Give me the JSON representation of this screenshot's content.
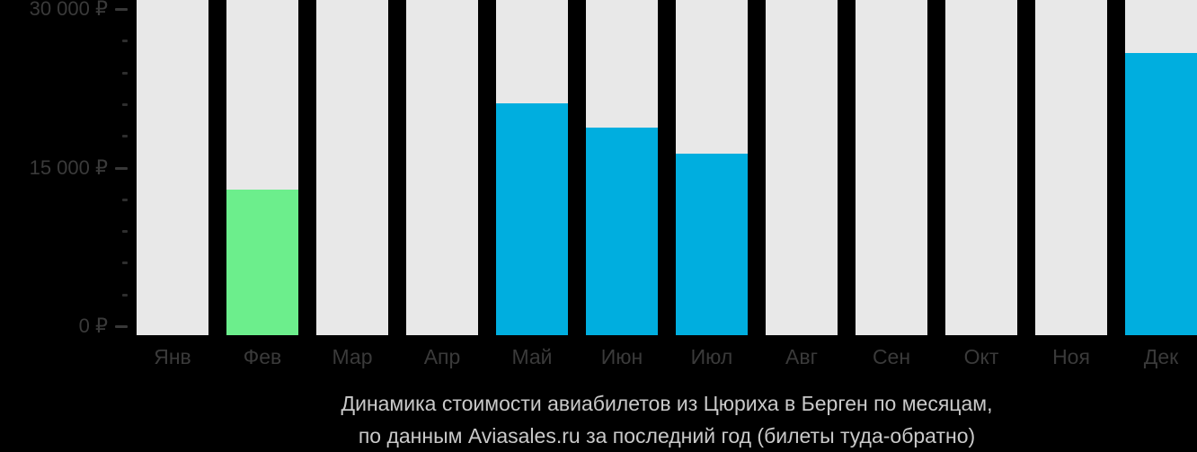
{
  "chart_data": {
    "type": "bar",
    "title": "Динамика стоимости авиабилетов из Цюриха в Берген по месяцам,",
    "subtitle": "по данным Aviasales.ru за последний год (билеты туда-обратно)",
    "categories": [
      "Янв",
      "Фев",
      "Мар",
      "Апр",
      "Май",
      "Июн",
      "Июл",
      "Авг",
      "Сен",
      "Окт",
      "Ноя",
      "Дек"
    ],
    "values": [
      null,
      12900,
      null,
      null,
      21100,
      18800,
      16300,
      null,
      null,
      null,
      null,
      25800
    ],
    "currency": "₽",
    "ylim": [
      0,
      30000
    ],
    "y_ticks": [
      {
        "value": 0,
        "label": "0 ₽"
      },
      {
        "value": 15000,
        "label": "15 000 ₽"
      },
      {
        "value": 30000,
        "label": "30 000 ₽"
      }
    ],
    "y_minor_step": 3000,
    "grid": false,
    "legend": null,
    "colors": {
      "bar_default": "#00AEDF",
      "bar_highlight": "#6CEE8C",
      "highlight_index": 1,
      "column_background": "#E8E8E8",
      "axis_label": "#3A3A3A",
      "caption_text": "#C9C9C9",
      "page_background": "#000000"
    }
  }
}
